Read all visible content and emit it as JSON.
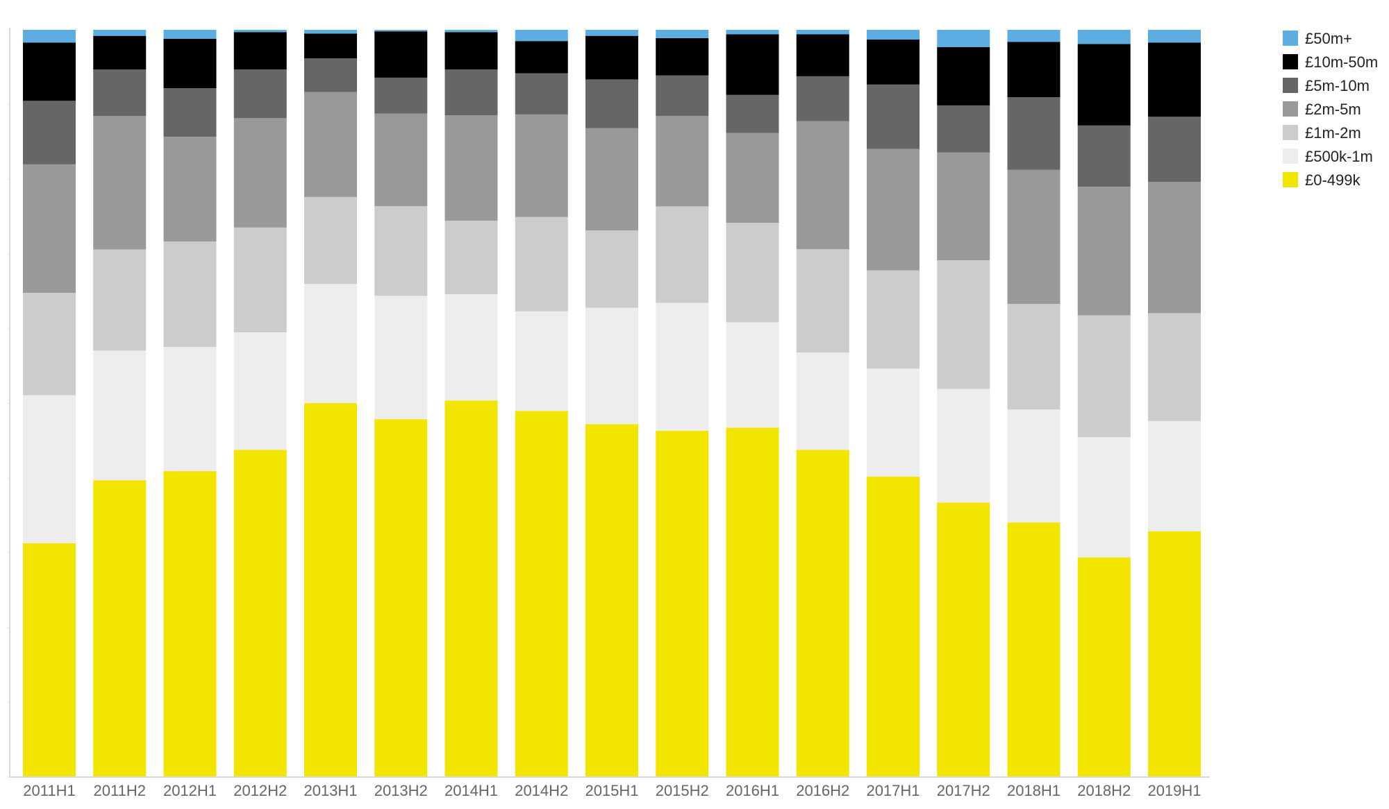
{
  "chart_data": {
    "type": "bar",
    "stacked": true,
    "normalized": true,
    "title": "",
    "xlabel": "",
    "ylabel": "",
    "ylim": [
      0,
      100
    ],
    "grid": false,
    "legend_position": "top-right",
    "categories": [
      "2011H1",
      "2011H2",
      "2012H1",
      "2012H2",
      "2013H1",
      "2013H2",
      "2014H1",
      "2014H2",
      "2015H1",
      "2015H2",
      "2016H1",
      "2016H2",
      "2017H1",
      "2017H2",
      "2018H1",
      "2018H2",
      "2019H1"
    ],
    "series": [
      {
        "name": "£0-499k",
        "color": "#F2E500",
        "values": [
          31.3,
          39.6,
          40.9,
          43.7,
          49.9,
          47.9,
          50.3,
          48.9,
          47.0,
          46.3,
          46.7,
          43.7,
          40.1,
          36.7,
          34.0,
          29.4,
          32.8
        ]
      },
      {
        "name": "£500k-1m",
        "color": "#EDEDED",
        "values": [
          19.8,
          17.3,
          16.6,
          15.7,
          15.9,
          16.5,
          14.2,
          13.3,
          15.5,
          17.1,
          14.1,
          13.0,
          14.4,
          15.2,
          15.1,
          16.1,
          14.7
        ]
      },
      {
        "name": "£1m-2m",
        "color": "#CCCCCC",
        "values": [
          13.7,
          13.5,
          14.1,
          14.0,
          11.6,
          12.0,
          9.8,
          12.6,
          10.3,
          12.9,
          13.3,
          13.8,
          13.1,
          17.2,
          14.1,
          16.3,
          14.4
        ]
      },
      {
        "name": "£2m-5m",
        "color": "#999999",
        "values": [
          17.2,
          17.8,
          14.0,
          14.6,
          14.0,
          12.4,
          14.1,
          13.7,
          13.6,
          12.1,
          12.0,
          17.1,
          16.2,
          14.4,
          17.9,
          17.2,
          17.5
        ]
      },
      {
        "name": "£5m-10m",
        "color": "#666666",
        "values": [
          8.5,
          6.2,
          6.5,
          6.5,
          4.5,
          4.8,
          6.1,
          5.5,
          6.5,
          5.4,
          5.1,
          6.0,
          8.6,
          6.3,
          9.7,
          8.2,
          8.7
        ]
      },
      {
        "name": "£10m-50m",
        "color": "#000000",
        "values": [
          7.8,
          4.5,
          6.6,
          5.0,
          3.3,
          6.2,
          5.0,
          4.3,
          5.8,
          5.0,
          8.1,
          5.6,
          6.0,
          7.8,
          7.4,
          10.9,
          9.9
        ]
      },
      {
        "name": "£50m+",
        "color": "#5DADE2",
        "values": [
          1.7,
          0.8,
          1.2,
          0.3,
          0.5,
          0.2,
          0.3,
          1.5,
          0.8,
          1.1,
          0.6,
          0.6,
          1.3,
          2.3,
          1.6,
          1.9,
          1.7
        ]
      }
    ]
  }
}
